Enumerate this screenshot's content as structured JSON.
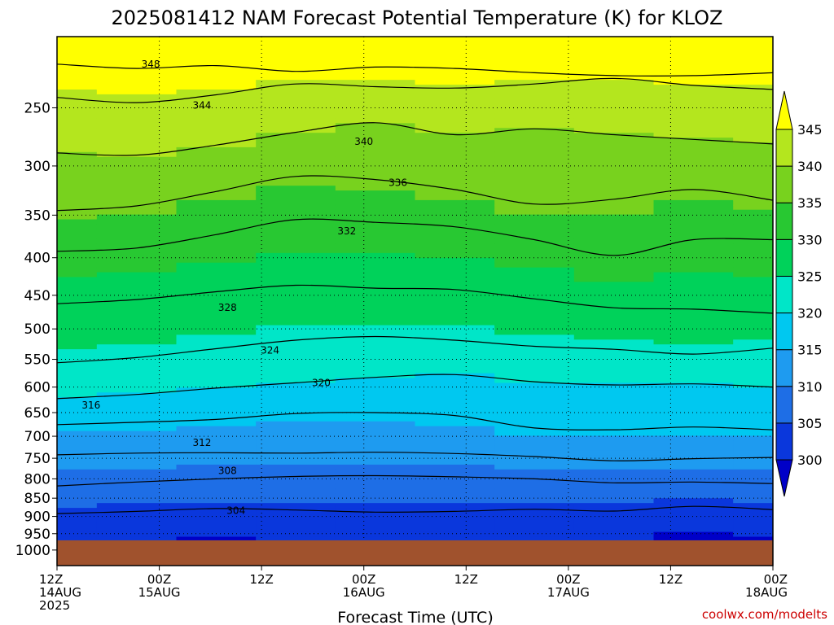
{
  "chart_data": {
    "type": "contour",
    "title": "2025081412 NAM Forecast Potential Temperature (K) for KLOZ",
    "xlabel": "Forecast Time (UTC)",
    "ylabel": "",
    "credit": "coolwx.com/modelts",
    "y_axis": {
      "scale": "log-pressure",
      "unit": "hPa",
      "range": [
        1050,
        200
      ],
      "tick_values": [
        250,
        300,
        350,
        400,
        450,
        500,
        550,
        600,
        650,
        700,
        750,
        800,
        850,
        900,
        950,
        1000
      ],
      "tick_labels": [
        "250",
        "300",
        "350",
        "400",
        "450",
        "500",
        "550",
        "600",
        "650",
        "700",
        "750",
        "800",
        "850",
        "900",
        "950",
        "1000"
      ]
    },
    "x_axis": {
      "range_hours": [
        0,
        84
      ],
      "ticks": [
        {
          "hour": 0,
          "lines": [
            "12Z",
            "14AUG",
            "2025"
          ]
        },
        {
          "hour": 12,
          "lines": [
            "00Z",
            "15AUG"
          ]
        },
        {
          "hour": 24,
          "lines": [
            "12Z"
          ]
        },
        {
          "hour": 36,
          "lines": [
            "00Z",
            "16AUG"
          ]
        },
        {
          "hour": 48,
          "lines": [
            "12Z"
          ]
        },
        {
          "hour": 60,
          "lines": [
            "00Z",
            "17AUG"
          ]
        },
        {
          "hour": 72,
          "lines": [
            "12Z"
          ]
        },
        {
          "hour": 84,
          "lines": [
            "00Z",
            "18AUG"
          ]
        }
      ]
    },
    "grid": true,
    "colorbar": {
      "levels": [
        300,
        305,
        310,
        315,
        320,
        325,
        330,
        335,
        340,
        345
      ],
      "labels": [
        "300",
        "305",
        "310",
        "315",
        "320",
        "325",
        "330",
        "335",
        "340",
        "345"
      ],
      "colors": [
        "#0000c8",
        "#0a37dc",
        "#1e6ee6",
        "#1e9bf0",
        "#00c8f0",
        "#00e6c8",
        "#00d25a",
        "#28c832",
        "#78d21e",
        "#b4e61e",
        "#ffff00"
      ],
      "position": "right"
    },
    "ground_color": "#a0522d",
    "isentropes": [
      {
        "theta": 348,
        "pressure": [
          218,
          221,
          219,
          223,
          220,
          221,
          224,
          226,
          226,
          224
        ],
        "label": "348",
        "label_hour": 11,
        "label_pressure": 218
      },
      {
        "theta": 344,
        "pressure": [
          242,
          246,
          240,
          232,
          234,
          235,
          232,
          228,
          233,
          236
        ],
        "label": "344",
        "label_hour": 17,
        "label_pressure": 248
      },
      {
        "theta": 340,
        "pressure": [
          288,
          290,
          281,
          270,
          262,
          272,
          267,
          272,
          276,
          280
        ],
        "label": "340",
        "label_hour": 36,
        "label_pressure": 278
      },
      {
        "theta": 336,
        "pressure": [
          345,
          340,
          325,
          310,
          313,
          323,
          338,
          333,
          323,
          334
        ],
        "label": "336",
        "label_hour": 40,
        "label_pressure": 316
      },
      {
        "theta": 332,
        "pressure": [
          392,
          388,
          372,
          355,
          358,
          363,
          378,
          397,
          378,
          378
        ],
        "label": "332",
        "label_hour": 34,
        "label_pressure": 368
      },
      {
        "theta": 328,
        "pressure": [
          462,
          456,
          445,
          436,
          440,
          442,
          455,
          468,
          470,
          476
        ],
        "label": "328",
        "label_hour": 20,
        "label_pressure": 468
      },
      {
        "theta": 324,
        "pressure": [
          556,
          547,
          532,
          518,
          512,
          518,
          528,
          533,
          541,
          531
        ],
        "label": "324",
        "label_hour": 25,
        "label_pressure": 535
      },
      {
        "theta": 320,
        "pressure": [
          622,
          614,
          602,
          592,
          582,
          577,
          590,
          596,
          594,
          600
        ],
        "label": "320",
        "label_hour": 31,
        "label_pressure": 592
      },
      {
        "theta": 316,
        "pressure": [
          675,
          670,
          664,
          652,
          650,
          656,
          682,
          686,
          680,
          686
        ],
        "label": "316",
        "label_hour": 4,
        "label_pressure": 635
      },
      {
        "theta": 312,
        "pressure": [
          742,
          738,
          737,
          738,
          736,
          739,
          746,
          756,
          751,
          748
        ],
        "label": "312",
        "label_hour": 17,
        "label_pressure": 714
      },
      {
        "theta": 308,
        "pressure": [
          818,
          808,
          800,
          794,
          792,
          795,
          800,
          810,
          808,
          812
        ],
        "label": "308",
        "label_hour": 20,
        "label_pressure": 780
      },
      {
        "theta": 304,
        "pressure": [
          892,
          886,
          878,
          882,
          888,
          886,
          880,
          885,
          872,
          881
        ],
        "label": "304",
        "label_hour": 21,
        "label_pressure": 884
      }
    ]
  }
}
